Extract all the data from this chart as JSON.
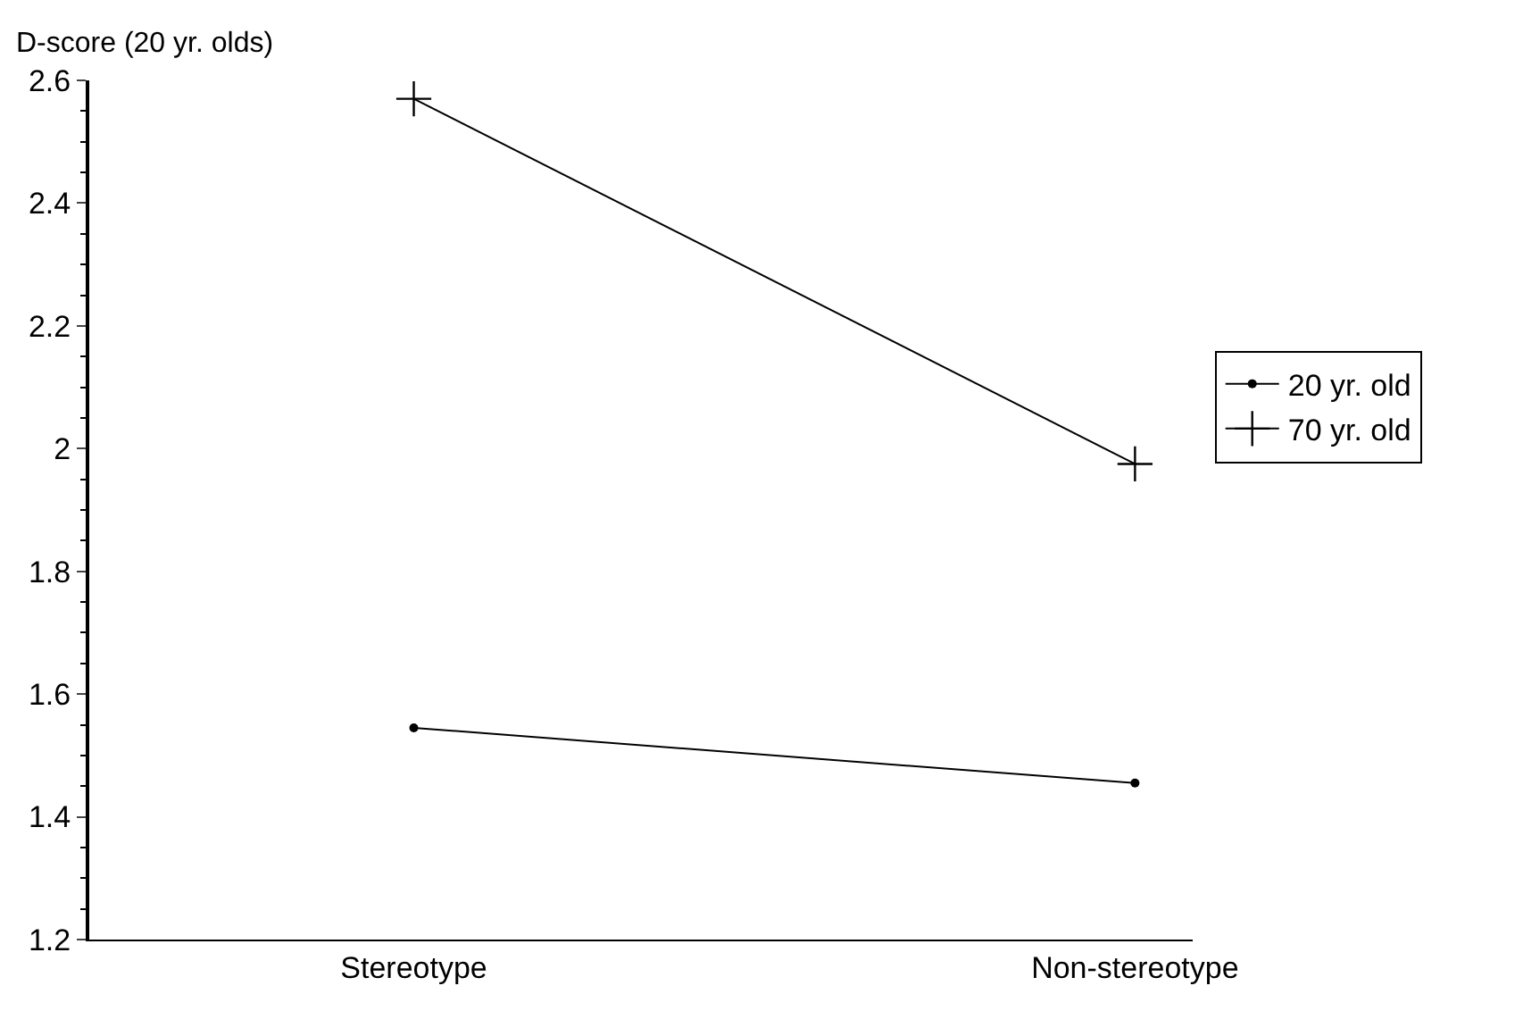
{
  "chart_data": {
    "type": "line",
    "ylabel": "D-score (20 yr. olds)",
    "categories": [
      "Stereotype",
      "Non-stereotype"
    ],
    "series": [
      {
        "name": "20 yr. old",
        "color": "#000000",
        "marker": "circle",
        "values": [
          1.545,
          1.455
        ]
      },
      {
        "name": "70 yr. old",
        "color": "#000000",
        "marker": "cross",
        "values": [
          2.57,
          1.975
        ]
      }
    ],
    "ylim": [
      1.2,
      2.6
    ],
    "yticks": [
      1.2,
      1.4,
      1.6,
      1.8,
      2,
      2.2,
      2.4,
      2.6
    ],
    "legend": "right",
    "line_style": "solid"
  }
}
